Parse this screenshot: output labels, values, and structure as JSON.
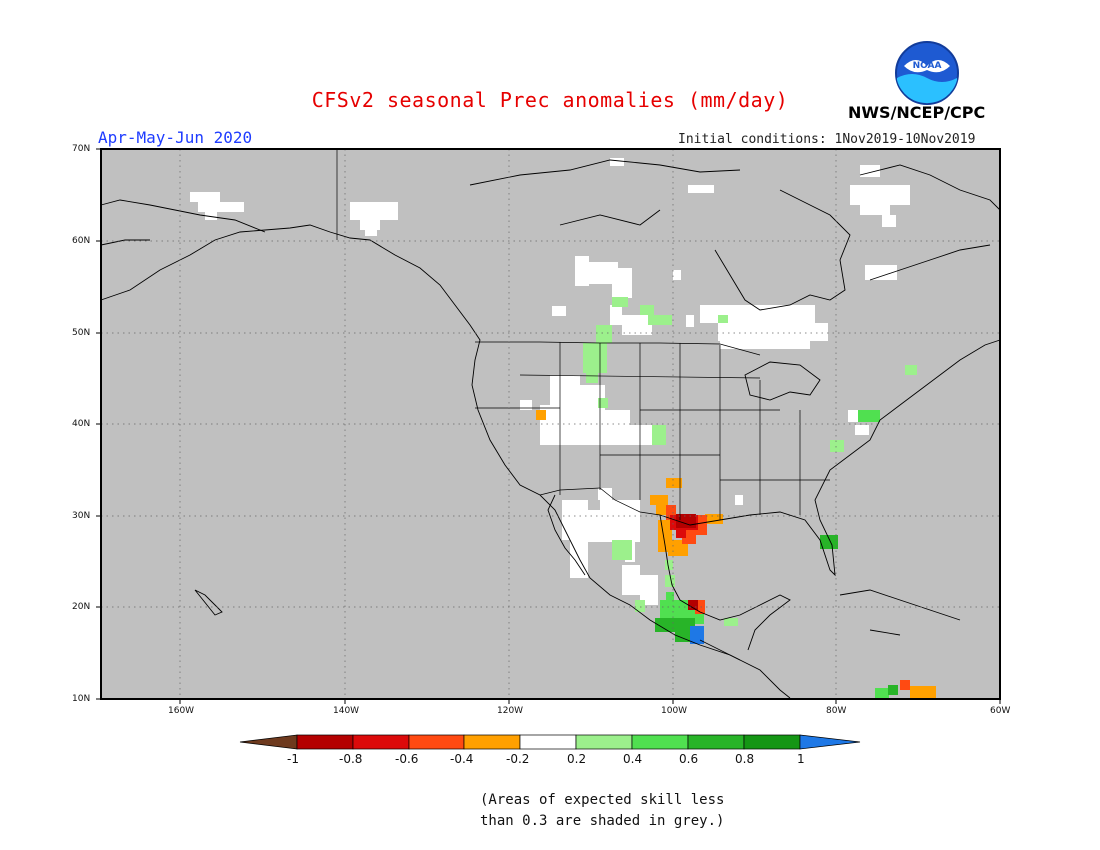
{
  "header": {
    "title": "CFSv2 seasonal Prec anomalies (mm/day)",
    "season": "Apr-May-Jun 2020",
    "initial_conditions": "Initial conditions: 1Nov2019-10Nov2019",
    "agency": "NWS/NCEP/CPC",
    "logo_text": "NOAA"
  },
  "map": {
    "lat_labels": [
      "70N",
      "60N",
      "50N",
      "40N",
      "30N",
      "20N",
      "10N"
    ],
    "lon_labels": [
      "160W",
      "140W",
      "120W",
      "100W",
      "80W",
      "60W"
    ],
    "colors": {
      "grey_mask": "#c0c0c0",
      "land_outline": "#000000"
    }
  },
  "colorbar": {
    "labels": [
      "-1",
      "-0.8",
      "-0.6",
      "-0.4",
      "-0.2",
      "0.2",
      "0.4",
      "0.6",
      "0.8",
      "1"
    ],
    "colors": [
      "#6e3a1e",
      "#b40000",
      "#dc0a0a",
      "#ff4a12",
      "#ffa000",
      "#ffffff",
      "#9cf08c",
      "#50e050",
      "#28b428",
      "#149614",
      "#1e78e6"
    ]
  },
  "note": {
    "line1": "(Areas of expected skill less",
    "line2": "than 0.3 are shaded in grey.)"
  }
}
